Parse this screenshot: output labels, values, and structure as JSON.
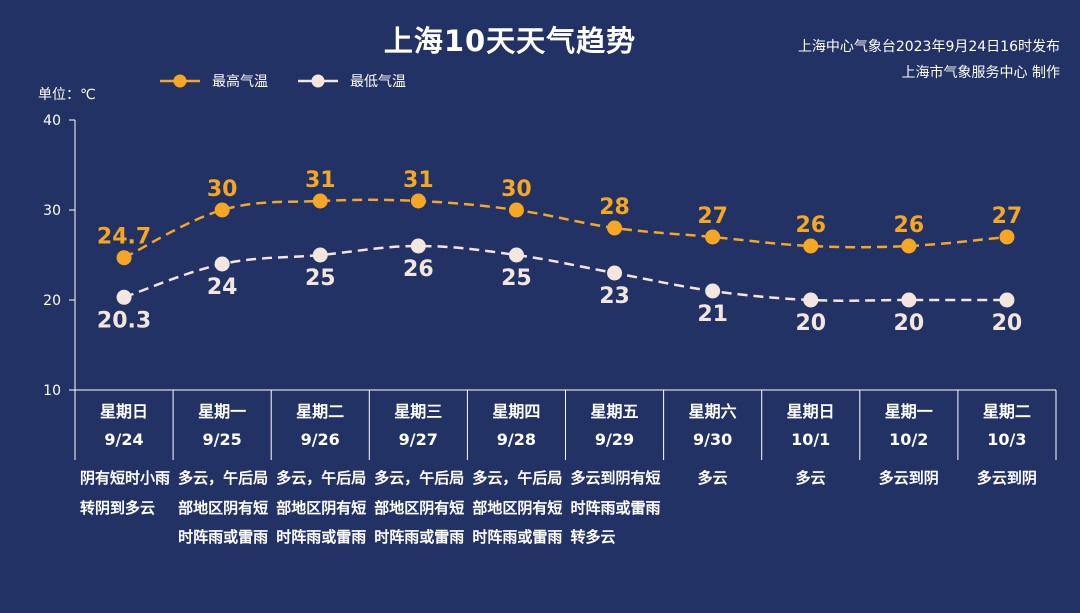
{
  "title": "上海10天天气趋势",
  "issuer": {
    "line1": "上海中心气象台2023年9月24日16时发布",
    "line2": "上海市气象服务中心 制作"
  },
  "unit_label": "单位：℃",
  "colors": {
    "background": "#223264",
    "high": "#f5a623",
    "low": "#f2e6de"
  },
  "chart_data": {
    "type": "line",
    "title": "上海10天天气趋势",
    "ylabel": "单位：℃",
    "ylim": [
      10,
      40
    ],
    "yticks": [
      10,
      20,
      30,
      40
    ],
    "legend_position": "top-left",
    "categories": [
      "9/24",
      "9/25",
      "9/26",
      "9/27",
      "9/28",
      "9/29",
      "9/30",
      "10/1",
      "10/2",
      "10/3"
    ],
    "weekdays": [
      "星期日",
      "星期一",
      "星期二",
      "星期三",
      "星期四",
      "星期五",
      "星期六",
      "星期日",
      "星期一",
      "星期二"
    ],
    "series": [
      {
        "name": "最高气温",
        "values": [
          24.7,
          30,
          31,
          31,
          30,
          28,
          27,
          26,
          26,
          27
        ],
        "labels": [
          "24.7",
          "30",
          "31",
          "31",
          "30",
          "28",
          "27",
          "26",
          "26",
          "27"
        ]
      },
      {
        "name": "最低气温",
        "values": [
          20.3,
          24,
          25,
          26,
          25,
          23,
          21,
          20,
          20,
          20
        ],
        "labels": [
          "20.3",
          "24",
          "25",
          "26",
          "25",
          "23",
          "21",
          "20",
          "20",
          "20"
        ]
      }
    ],
    "weather": [
      "阴有短时小雨转阴到多云",
      "多云，午后局部地区阴有短时阵雨或雷雨",
      "多云，午后局部地区阴有短时阵雨或雷雨",
      "多云，午后局部地区阴有短时阵雨或雷雨",
      "多云，午后局部地区阴有短时阵雨或雷雨",
      "多云到阴有短时阵雨或雷雨转多云",
      "多云",
      "多云",
      "多云到阴",
      "多云到阴"
    ]
  }
}
